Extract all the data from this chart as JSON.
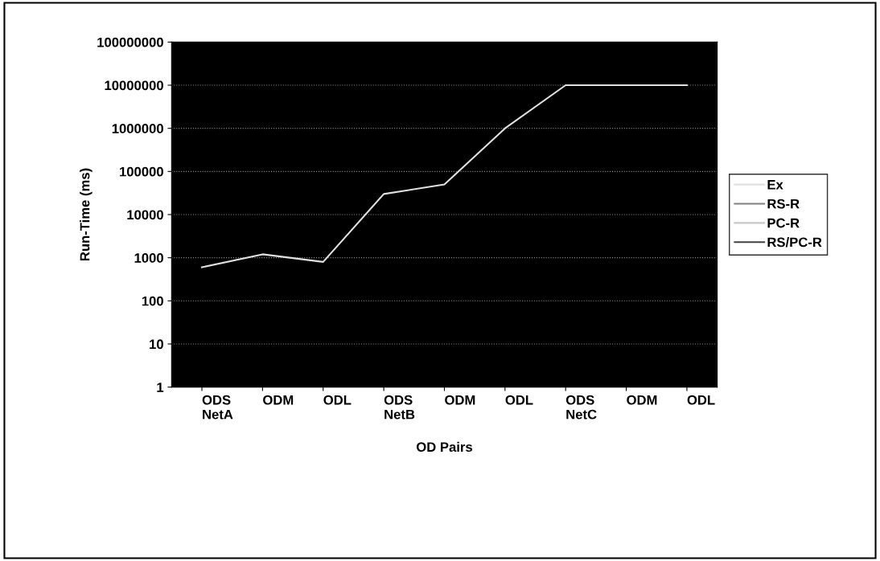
{
  "chart_data": {
    "type": "line",
    "xlabel": "OD Pairs",
    "ylabel": "Run-Time (ms)",
    "categories": [
      "ODS\nNetA",
      "ODM",
      "ODL",
      "ODS\nNetB",
      "ODM",
      "ODL",
      "ODS\nNetC",
      "ODM",
      "ODL"
    ],
    "series": [
      {
        "name": "Ex",
        "color": "#e0e0e0",
        "values": [
          600,
          1200,
          800,
          30000,
          50000,
          1000000,
          10000000,
          10000000,
          10000000
        ]
      },
      {
        "name": "RS-R",
        "color": "#808080",
        "values": [
          null,
          null,
          null,
          null,
          null,
          null,
          null,
          null,
          null
        ]
      },
      {
        "name": "PC-R",
        "color": "#c8c8c8",
        "values": [
          null,
          null,
          null,
          null,
          null,
          null,
          null,
          null,
          null
        ]
      },
      {
        "name": "RS/PC-R",
        "color": "#404040",
        "values": [
          null,
          null,
          null,
          null,
          null,
          null,
          null,
          null,
          null
        ]
      }
    ],
    "log": true,
    "ylim": [
      1,
      100000000
    ],
    "yticks": [
      1,
      10,
      100,
      1000,
      10000,
      100000,
      1000000,
      10000000,
      100000000
    ],
    "grid": "y",
    "legend": "right",
    "marker": "none",
    "line_style": "solid"
  }
}
